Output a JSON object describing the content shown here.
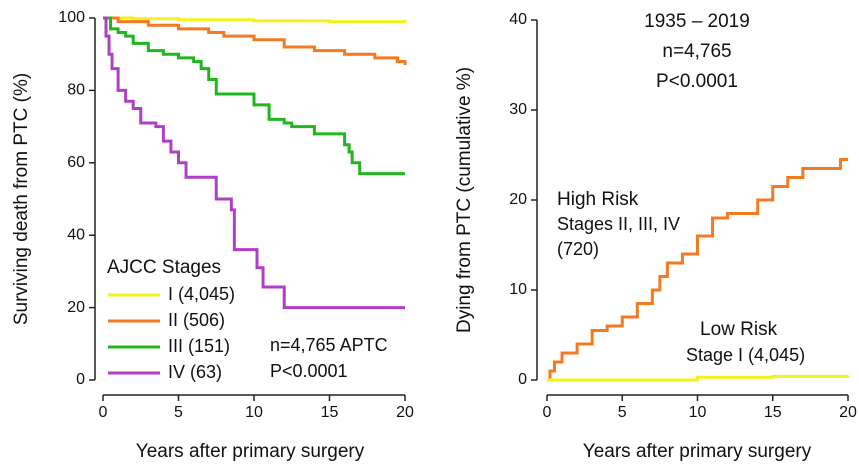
{
  "chart_data": [
    {
      "type": "step",
      "ylabel": "Surviving death from PTC (%)",
      "xlabel": "Years after primary surgery",
      "xlim": [
        0,
        20
      ],
      "ylim": [
        0,
        100
      ],
      "xticks": [
        0,
        5,
        10,
        15,
        20
      ],
      "yticks": [
        0,
        20,
        40,
        60,
        80,
        100
      ],
      "legend_title": "AJCC Stages",
      "legend": "lower left",
      "annotations": [
        "n=4,765 APTC",
        "P<0.0001"
      ],
      "series": [
        {
          "name": "I (4,045)",
          "color": "#f2f21c",
          "x": [
            0,
            2,
            5,
            10,
            15,
            20
          ],
          "values": [
            100,
            99.8,
            99.5,
            99.2,
            99,
            98.7
          ]
        },
        {
          "name": "II (506)",
          "color": "#f47a22",
          "x": [
            0,
            1,
            3,
            5,
            7,
            8,
            10,
            12,
            14,
            16,
            18,
            19.5,
            20
          ],
          "values": [
            100,
            99,
            98,
            97,
            96,
            95,
            94,
            92,
            91,
            90,
            89,
            88,
            87
          ]
        },
        {
          "name": "III (151)",
          "color": "#1eb81e",
          "x": [
            0,
            0.5,
            1,
            1.5,
            2,
            3,
            4,
            5,
            6,
            6.5,
            7,
            7.5,
            10,
            11,
            12,
            12.5,
            14,
            16,
            16.3,
            16.5,
            17,
            20
          ],
          "values": [
            100,
            97,
            96,
            95,
            93,
            91,
            90,
            89,
            88,
            86,
            83,
            79,
            76,
            72,
            71,
            70,
            68,
            65,
            63,
            60,
            57,
            57
          ]
        },
        {
          "name": "IV (63)",
          "color": "#b03fc8",
          "x": [
            0,
            0.2,
            0.4,
            0.6,
            1,
            1.5,
            2,
            2.5,
            3.5,
            4,
            4.5,
            5,
            5.5,
            7.5,
            8.5,
            8.7,
            10.2,
            10.6,
            12,
            20
          ],
          "values": [
            100,
            95,
            90,
            86,
            80,
            77,
            75,
            71,
            70,
            66,
            63,
            60,
            56,
            50,
            47,
            36,
            31,
            25.7,
            20,
            20
          ]
        }
      ]
    },
    {
      "type": "step",
      "ylabel": "Dying from PTC (cumulative %)",
      "xlabel": "Years after primary surgery",
      "xlim": [
        0,
        20
      ],
      "ylim": [
        0,
        40
      ],
      "xticks": [
        0,
        5,
        10,
        15,
        20
      ],
      "yticks": [
        0,
        10,
        20,
        30,
        40
      ],
      "annotations": [
        "1935 – 2019",
        "n=4,765",
        "P<0.0001",
        "Stages II, III, IV",
        "(720)",
        "Stage I (4,045)"
      ],
      "series": [
        {
          "name": "High Risk",
          "color": "#f47a22",
          "x": [
            0,
            0.2,
            0.5,
            1,
            2,
            3,
            4,
            5,
            6,
            7,
            7.5,
            8,
            9,
            10,
            11,
            12,
            14,
            15,
            16,
            17,
            19.5,
            20
          ],
          "values": [
            0,
            1,
            2,
            3,
            4,
            5.5,
            6,
            7,
            8.5,
            10,
            11.5,
            13,
            14,
            16,
            18,
            18.5,
            20,
            21.5,
            22.5,
            23.5,
            24.5,
            24.5
          ]
        },
        {
          "name": "Low Risk",
          "color": "#f2f21c",
          "x": [
            0,
            5,
            10,
            15,
            20
          ],
          "values": [
            0,
            0,
            0.3,
            0.4,
            0.5
          ]
        }
      ]
    }
  ]
}
